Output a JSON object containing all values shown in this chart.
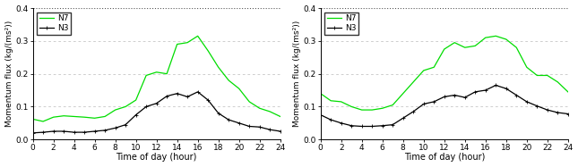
{
  "left": {
    "N7": [
      0.062,
      0.055,
      0.068,
      0.072,
      0.07,
      0.068,
      0.065,
      0.07,
      0.09,
      0.1,
      0.12,
      0.195,
      0.205,
      0.2,
      0.29,
      0.295,
      0.315,
      0.27,
      0.22,
      0.18,
      0.155,
      0.115,
      0.095,
      0.085,
      0.07
    ],
    "N3": [
      0.02,
      0.022,
      0.025,
      0.025,
      0.022,
      0.022,
      0.025,
      0.028,
      0.035,
      0.045,
      0.075,
      0.1,
      0.11,
      0.132,
      0.14,
      0.13,
      0.145,
      0.12,
      0.08,
      0.06,
      0.05,
      0.04,
      0.038,
      0.03,
      0.025
    ]
  },
  "right": {
    "N7": [
      0.14,
      0.118,
      0.115,
      0.1,
      0.09,
      0.09,
      0.095,
      0.105,
      0.14,
      0.175,
      0.21,
      0.22,
      0.275,
      0.295,
      0.28,
      0.285,
      0.31,
      0.315,
      0.305,
      0.28,
      0.22,
      0.195,
      0.195,
      0.175,
      0.145
    ],
    "N3": [
      0.075,
      0.06,
      0.05,
      0.042,
      0.04,
      0.04,
      0.042,
      0.045,
      0.065,
      0.085,
      0.108,
      0.115,
      0.13,
      0.135,
      0.128,
      0.145,
      0.15,
      0.165,
      0.155,
      0.135,
      0.115,
      0.102,
      0.09,
      0.082,
      0.078
    ]
  },
  "x": [
    0,
    1,
    2,
    3,
    4,
    5,
    6,
    7,
    8,
    9,
    10,
    11,
    12,
    13,
    14,
    15,
    16,
    17,
    18,
    19,
    20,
    21,
    22,
    23,
    24
  ],
  "N7_color": "#00dd00",
  "N3_color": "#000000",
  "ylabel": "Momentum flux (kg/(ms²))",
  "xlabel": "Time of day (hour)",
  "ylim": [
    0.0,
    0.4
  ],
  "yticks": [
    0.0,
    0.1,
    0.2,
    0.3,
    0.4
  ],
  "xticks": [
    0,
    2,
    4,
    6,
    8,
    10,
    12,
    14,
    16,
    18,
    20,
    22,
    24
  ],
  "grid_color": "#bbbbbb",
  "top_dotted_color": "#555555"
}
